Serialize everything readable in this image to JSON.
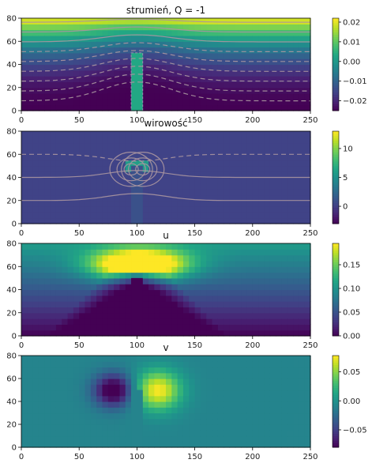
{
  "chart_data": [
    {
      "type": "heatmap",
      "title": "strumień, Q = -1",
      "xlim": [
        0,
        250
      ],
      "ylim": [
        0,
        80
      ],
      "xticks": [
        0,
        50,
        100,
        150,
        200,
        250
      ],
      "yticks": [
        0,
        20,
        40,
        60,
        80
      ],
      "colorbar": {
        "min": -0.025,
        "max": 0.022,
        "ticks": [
          "0.02",
          "0.01",
          "0.00",
          "−0.01",
          "−0.02"
        ],
        "tick_values": [
          0.02,
          0.01,
          0.0,
          -0.01,
          -0.02
        ]
      },
      "obstacle": {
        "x": [
          95,
          105
        ],
        "y": [
          0,
          50
        ]
      },
      "contours": "true"
    },
    {
      "type": "heatmap",
      "title": "wirowość",
      "xlim": [
        0,
        250
      ],
      "ylim": [
        0,
        80
      ],
      "xticks": [
        0,
        50,
        100,
        150,
        200,
        250
      ],
      "yticks": [
        0,
        20,
        40,
        60,
        80
      ],
      "colorbar": {
        "min": -3,
        "max": 13,
        "ticks": [
          "10",
          "5",
          "0"
        ],
        "tick_values": [
          10,
          5,
          0
        ]
      },
      "obstacle": {
        "x": [
          95,
          105
        ],
        "y": [
          0,
          50
        ]
      },
      "contours": "true"
    },
    {
      "type": "heatmap",
      "title": "u",
      "xlim": [
        0,
        250
      ],
      "ylim": [
        0,
        80
      ],
      "xticks": [
        0,
        50,
        100,
        150,
        200,
        250
      ],
      "yticks": [
        0,
        20,
        40,
        60,
        80
      ],
      "colorbar": {
        "min": 0.0,
        "max": 0.195,
        "ticks": [
          "0.15",
          "0.10",
          "0.05",
          "0.00"
        ],
        "tick_values": [
          0.15,
          0.1,
          0.05,
          0.0
        ]
      },
      "obstacle": {
        "x": [
          95,
          105
        ],
        "y": [
          0,
          50
        ]
      },
      "contours": "false"
    },
    {
      "type": "heatmap",
      "title": "v",
      "xlim": [
        0,
        250
      ],
      "ylim": [
        0,
        80
      ],
      "xticks": [
        0,
        50,
        100,
        150,
        200,
        250
      ],
      "yticks": [
        0,
        20,
        40,
        60,
        80
      ],
      "colorbar": {
        "min": -0.08,
        "max": 0.078,
        "ticks": [
          "0.05",
          "0.00",
          "−0.05"
        ],
        "tick_values": [
          0.05,
          0.0,
          -0.05
        ]
      },
      "obstacle": {
        "x": [
          95,
          105
        ],
        "y": [
          0,
          50
        ]
      },
      "contours": "false"
    }
  ]
}
